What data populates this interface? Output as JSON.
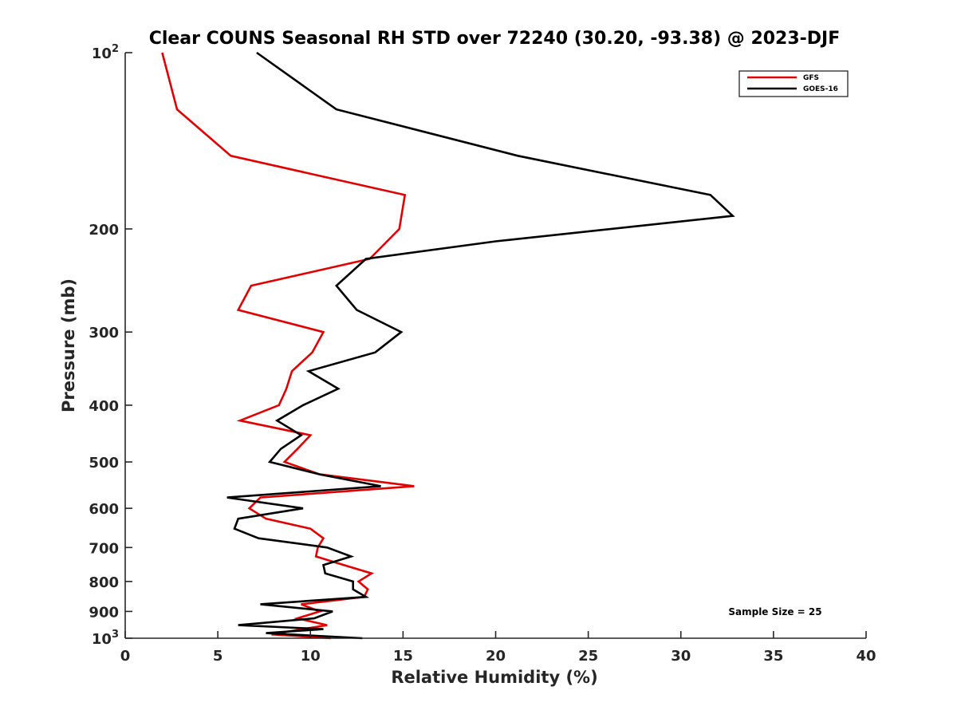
{
  "chart_data": {
    "type": "line",
    "title": "Clear COUNS Seasonal RH STD over 72240 (30.20, -93.38) @ 2023-DJF",
    "xlabel": "Relative Humidity (%)",
    "ylabel": "Pressure (mb)",
    "xlim": [
      0,
      40
    ],
    "ylim": [
      100,
      1000
    ],
    "yscale": "log",
    "y_reversed": true,
    "grid": false,
    "legend_position": "top-right",
    "x_ticks": [
      "0",
      "5",
      "10",
      "15",
      "20",
      "25",
      "30",
      "35",
      "40"
    ],
    "x_tick_values": [
      0,
      5,
      10,
      15,
      20,
      25,
      30,
      35,
      40
    ],
    "y_tick_values": [
      100,
      200,
      300,
      400,
      500,
      600,
      700,
      800,
      900,
      1000
    ],
    "y_ticks": [
      {
        "base": "10",
        "exp": "2"
      },
      {
        "base": "200",
        "exp": ""
      },
      {
        "base": "300",
        "exp": ""
      },
      {
        "base": "400",
        "exp": ""
      },
      {
        "base": "500",
        "exp": ""
      },
      {
        "base": "600",
        "exp": ""
      },
      {
        "base": "700",
        "exp": ""
      },
      {
        "base": "800",
        "exp": ""
      },
      {
        "base": "900",
        "exp": ""
      },
      {
        "base": "10",
        "exp": "3"
      }
    ],
    "annotation": "Sample Size = 25",
    "series": [
      {
        "name": "GFS",
        "color": "#e00000",
        "points": [
          [
            2.0,
            100
          ],
          [
            2.8,
            125
          ],
          [
            5.7,
            150
          ],
          [
            15.1,
            175
          ],
          [
            14.8,
            200
          ],
          [
            13.2,
            225
          ],
          [
            6.8,
            250
          ],
          [
            6.1,
            275
          ],
          [
            10.7,
            300
          ],
          [
            10.1,
            325
          ],
          [
            9.0,
            350
          ],
          [
            8.7,
            375
          ],
          [
            8.3,
            400
          ],
          [
            6.2,
            425
          ],
          [
            10.0,
            450
          ],
          [
            9.3,
            475
          ],
          [
            8.6,
            500
          ],
          [
            10.5,
            525
          ],
          [
            15.6,
            550
          ],
          [
            7.3,
            575
          ],
          [
            6.7,
            600
          ],
          [
            7.6,
            625
          ],
          [
            10.0,
            650
          ],
          [
            10.7,
            675
          ],
          [
            10.4,
            700
          ],
          [
            10.3,
            725
          ],
          [
            11.8,
            750
          ],
          [
            13.3,
            775
          ],
          [
            12.6,
            800
          ],
          [
            13.1,
            825
          ],
          [
            12.9,
            850
          ],
          [
            9.5,
            875
          ],
          [
            10.5,
            900
          ],
          [
            9.3,
            925
          ],
          [
            10.9,
            950
          ],
          [
            8.7,
            975
          ],
          [
            7.9,
            985
          ],
          [
            11.1,
            1000
          ]
        ]
      },
      {
        "name": "GOES-16",
        "color": "#000000",
        "points": [
          [
            7.1,
            100
          ],
          [
            11.4,
            125
          ],
          [
            21.2,
            150
          ],
          [
            31.6,
            175
          ],
          [
            32.8,
            190
          ],
          [
            20.0,
            210
          ],
          [
            13.0,
            225
          ],
          [
            11.4,
            250
          ],
          [
            12.5,
            275
          ],
          [
            14.9,
            300
          ],
          [
            13.5,
            325
          ],
          [
            9.9,
            350
          ],
          [
            11.5,
            375
          ],
          [
            9.6,
            400
          ],
          [
            8.2,
            425
          ],
          [
            9.5,
            450
          ],
          [
            8.4,
            475
          ],
          [
            7.8,
            500
          ],
          [
            10.5,
            525
          ],
          [
            13.8,
            550
          ],
          [
            5.5,
            575
          ],
          [
            9.6,
            600
          ],
          [
            6.1,
            625
          ],
          [
            5.9,
            650
          ],
          [
            7.2,
            675
          ],
          [
            10.9,
            700
          ],
          [
            12.2,
            725
          ],
          [
            10.7,
            750
          ],
          [
            10.8,
            775
          ],
          [
            12.3,
            800
          ],
          [
            12.3,
            825
          ],
          [
            13.0,
            850
          ],
          [
            7.3,
            875
          ],
          [
            11.2,
            900
          ],
          [
            10.2,
            925
          ],
          [
            6.1,
            950
          ],
          [
            10.7,
            965
          ],
          [
            7.6,
            980
          ],
          [
            12.8,
            1000
          ]
        ]
      }
    ]
  }
}
